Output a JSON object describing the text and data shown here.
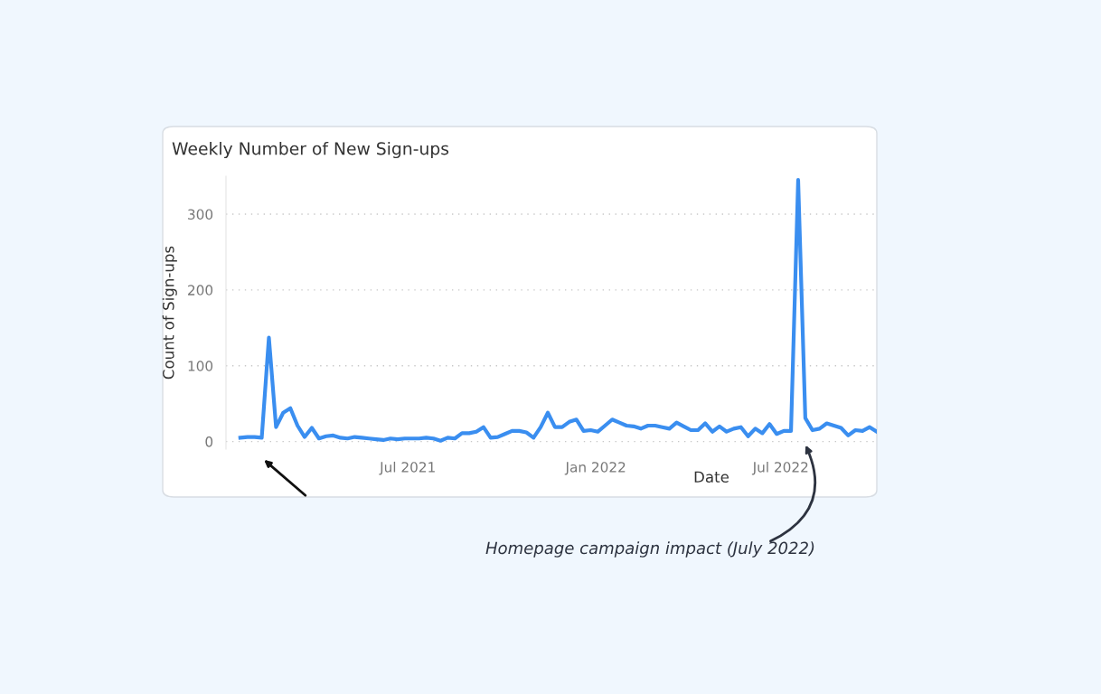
{
  "chart_data": {
    "type": "line",
    "title": "Weekly Number of New Sign-ups",
    "xlabel": "Date",
    "ylabel": "Count of Sign-ups",
    "x": [
      "2021-01-18",
      "2021-01-25",
      "2021-02-01",
      "2021-02-08",
      "2021-02-15",
      "2021-02-22",
      "2021-03-01",
      "2021-03-08",
      "2021-03-15",
      "2021-03-22",
      "2021-03-29",
      "2021-04-05",
      "2021-04-12",
      "2021-04-19",
      "2021-04-26",
      "2021-05-03",
      "2021-05-10",
      "2021-05-17",
      "2021-05-24",
      "2021-05-31",
      "2021-06-07",
      "2021-06-14",
      "2021-06-21",
      "2021-06-28",
      "2021-07-05",
      "2021-07-12",
      "2021-07-19",
      "2021-07-26",
      "2021-08-02",
      "2021-08-09",
      "2021-08-16",
      "2021-08-23",
      "2021-08-30",
      "2021-09-06",
      "2021-09-13",
      "2021-09-20",
      "2021-09-27",
      "2021-10-04",
      "2021-10-11",
      "2021-10-18",
      "2021-10-25",
      "2021-11-01",
      "2021-11-08",
      "2021-11-15",
      "2021-11-22",
      "2021-11-29",
      "2021-12-06",
      "2021-12-13",
      "2021-12-20",
      "2021-12-27",
      "2022-01-03",
      "2022-01-10",
      "2022-01-17",
      "2022-01-24",
      "2022-01-31",
      "2022-02-07",
      "2022-02-14",
      "2022-02-21",
      "2022-02-28",
      "2022-03-07",
      "2022-03-14",
      "2022-03-21",
      "2022-03-28",
      "2022-04-04",
      "2022-04-11",
      "2022-04-18",
      "2022-04-25",
      "2022-05-02",
      "2022-05-09",
      "2022-05-16",
      "2022-05-23",
      "2022-05-30",
      "2022-06-06",
      "2022-06-13",
      "2022-06-20",
      "2022-06-27",
      "2022-07-04",
      "2022-07-11",
      "2022-07-18",
      "2022-07-25",
      "2022-08-01",
      "2022-08-08",
      "2022-08-15",
      "2022-08-22",
      "2022-08-29",
      "2022-09-05",
      "2022-09-12",
      "2022-09-19",
      "2022-09-26",
      "2022-10-03"
    ],
    "series": [
      {
        "color": "#3a8ef0",
        "values": [
          5,
          6,
          6,
          5,
          137,
          19,
          38,
          44,
          21,
          6,
          18,
          4,
          7,
          8,
          5,
          4,
          6,
          5,
          4,
          3,
          2,
          4,
          3,
          4,
          4,
          4,
          5,
          4,
          1,
          5,
          4,
          11,
          11,
          13,
          19,
          5,
          6,
          10,
          14,
          14,
          12,
          5,
          19,
          38,
          19,
          19,
          26,
          29,
          14,
          15,
          13,
          21,
          29,
          25,
          21,
          20,
          17,
          21,
          21,
          19,
          17,
          25,
          20,
          15,
          15,
          24,
          13,
          20,
          13,
          17,
          19,
          7,
          17,
          11,
          23,
          10,
          14,
          14,
          345,
          31,
          15,
          17,
          24,
          21,
          18,
          8,
          15,
          14,
          19,
          13
        ]
      }
    ],
    "xlim": [
      "2021-01-04",
      "2022-10-03"
    ],
    "xticks": [
      {
        "value": "2021-07-01",
        "label": "Jul 2021"
      },
      {
        "value": "2022-01-01",
        "label": "Jan 2022"
      },
      {
        "value": "2022-07-01",
        "label": "Jul 2022"
      }
    ],
    "ylim": [
      -10,
      350
    ],
    "yticks": [
      0,
      100,
      200,
      300
    ],
    "grid": "y",
    "legend": false,
    "marker": "none",
    "line_style": "solid",
    "annotations": [
      "Homepage campaign impact (July 2022)"
    ]
  }
}
